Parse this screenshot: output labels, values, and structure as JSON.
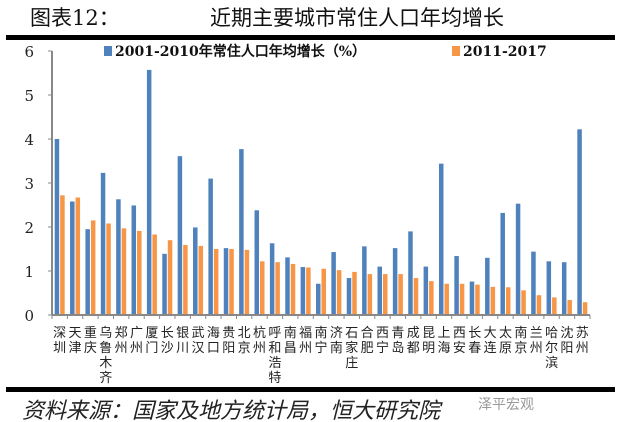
{
  "header": {
    "title": "图表12：",
    "subtitle": "近期主要城市常住人口年均增长"
  },
  "footer": {
    "source": "资料来源：国家及地方统计局，恒大研究院",
    "watermark": "泽平宏观"
  },
  "chart_data": {
    "type": "bar",
    "title": "",
    "xlabel": "",
    "ylabel": "",
    "ylim": [
      0,
      6
    ],
    "yticks": [
      "0",
      "1",
      "2",
      "3",
      "4",
      "5",
      "6"
    ],
    "legend_position": "top",
    "grid": false,
    "categories": [
      "深圳",
      "天津",
      "重庆",
      "乌鲁木齐",
      "郑州",
      "广州",
      "厦门",
      "长沙",
      "银川",
      "武汉",
      "海口",
      "贵阳",
      "北京",
      "杭州",
      "呼和浩特",
      "南昌",
      "福州",
      "南宁",
      "济南",
      "石家庄",
      "合肥",
      "西宁",
      "青岛",
      "成都",
      "昆明",
      "上海",
      "西安",
      "长春",
      "大连",
      "太原",
      "南京",
      "兰州",
      "哈尔滨",
      "沈阳",
      "苏州"
    ],
    "series": [
      {
        "name": "2001-2010年常住人口年均增长（%）",
        "color": "#4f81bd",
        "values": [
          4.0,
          2.58,
          1.95,
          3.23,
          2.63,
          2.49,
          5.57,
          1.39,
          3.61,
          1.99,
          3.1,
          1.52,
          3.77,
          2.38,
          1.63,
          1.31,
          1.09,
          0.71,
          1.43,
          0.84,
          1.56,
          1.1,
          1.52,
          1.9,
          1.1,
          3.44,
          1.34,
          0.76,
          1.3,
          2.32,
          2.53,
          1.44,
          1.22,
          1.2,
          4.22
        ]
      },
      {
        "name": "2011-2017",
        "color": "#f79646",
        "values": [
          2.72,
          2.67,
          2.15,
          2.08,
          1.97,
          1.91,
          1.83,
          1.7,
          1.59,
          1.57,
          1.5,
          1.5,
          1.48,
          1.22,
          1.2,
          1.16,
          1.08,
          1.05,
          1.02,
          0.98,
          0.93,
          0.93,
          0.93,
          0.84,
          0.77,
          0.71,
          0.71,
          0.69,
          0.64,
          0.63,
          0.56,
          0.45,
          0.4,
          0.34,
          0.29
        ]
      }
    ]
  }
}
